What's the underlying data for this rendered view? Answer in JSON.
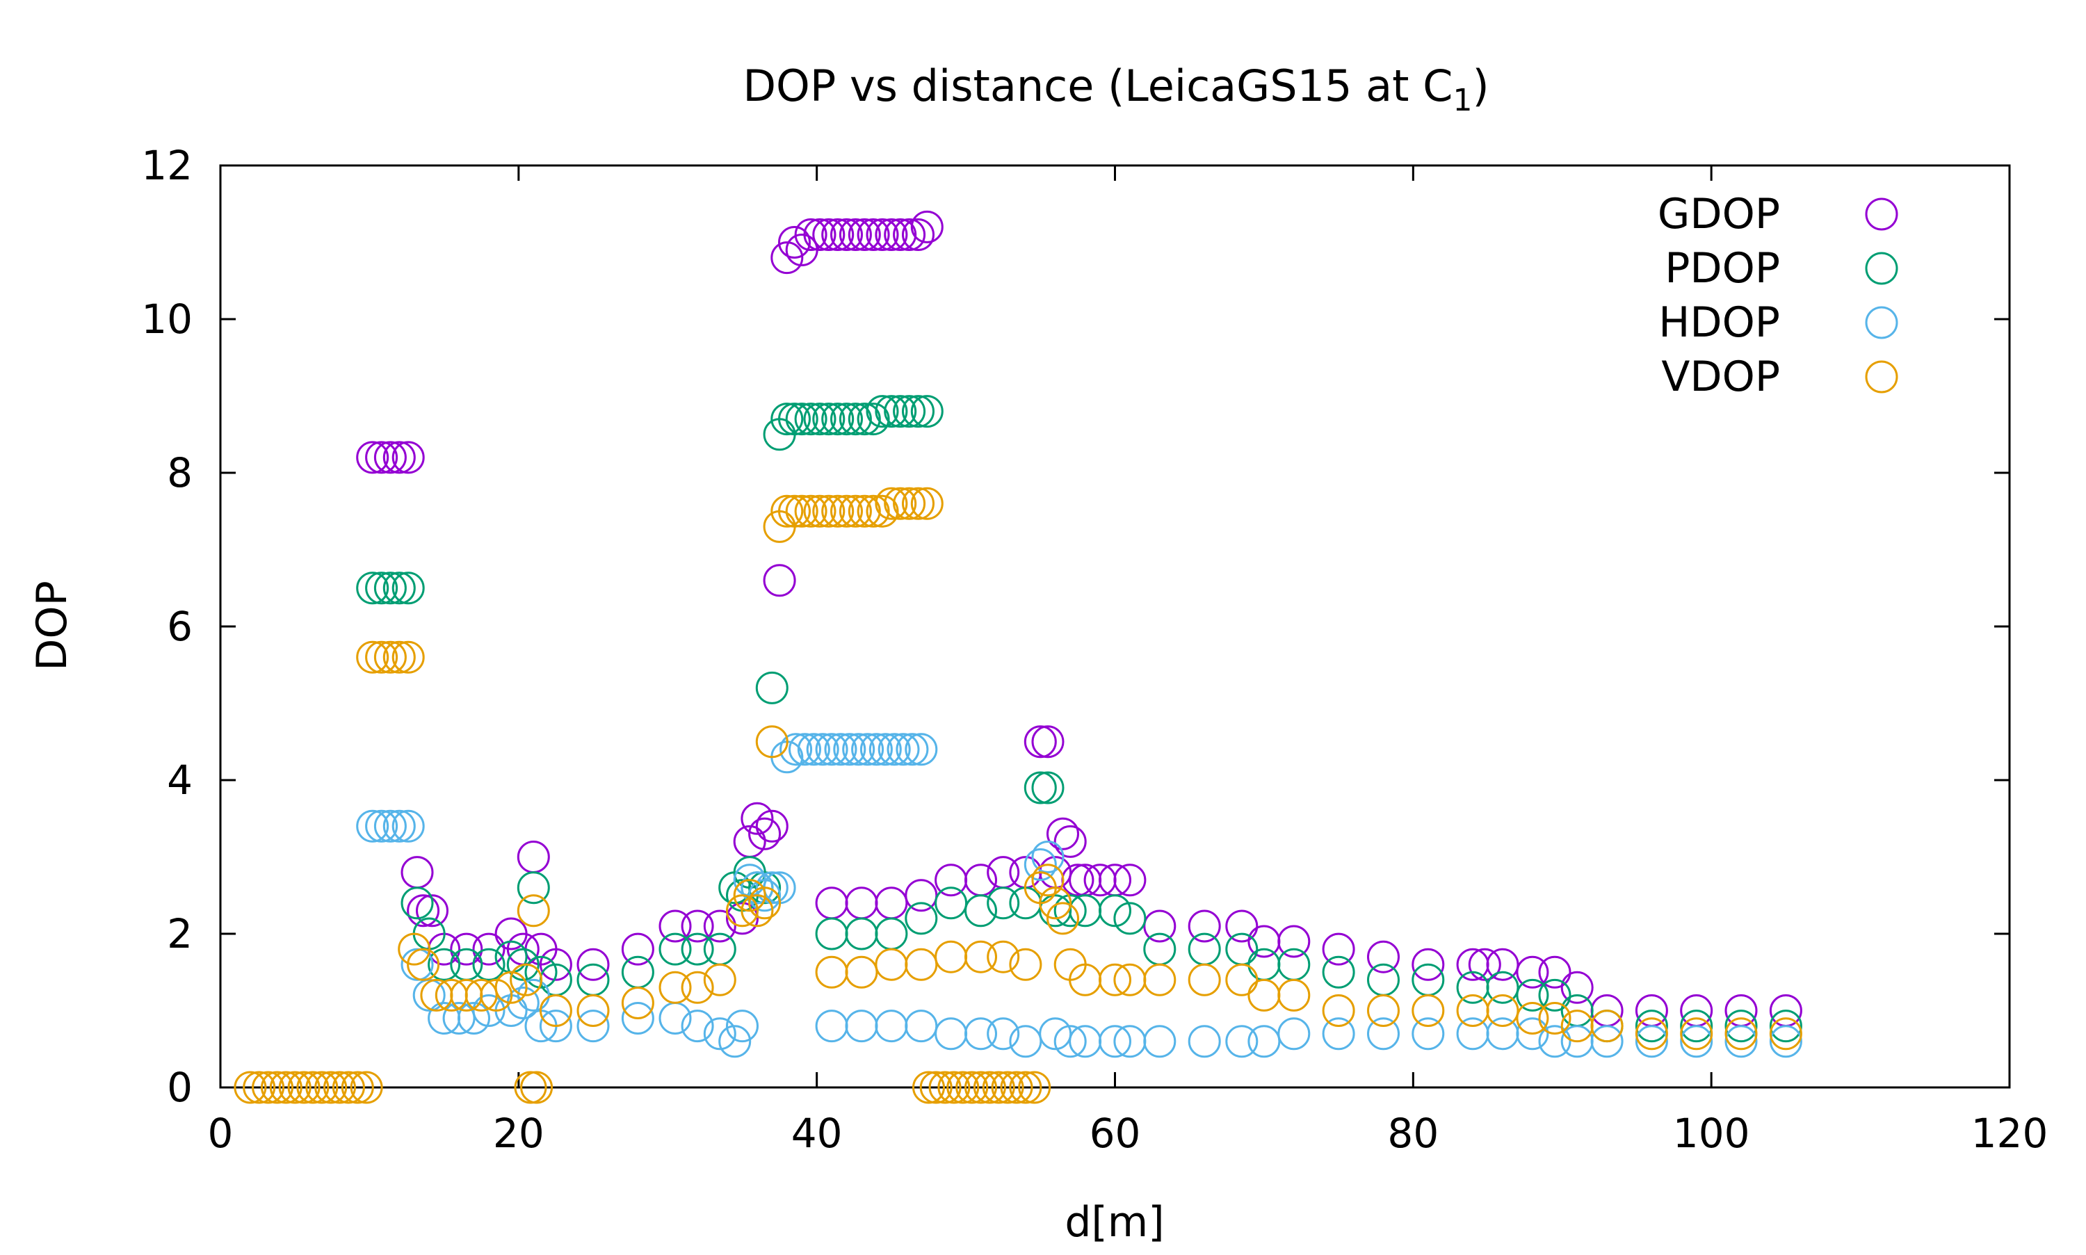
{
  "chart_data": {
    "type": "scatter",
    "title": "DOP vs distance (LeicaGS15 at C",
    "title_subscript": "1",
    "title_suffix": ")",
    "xlabel": "d[m]",
    "ylabel": "DOP",
    "xlim": [
      0,
      120
    ],
    "ylim": [
      0,
      12
    ],
    "xticks": [
      "0",
      "20",
      "40",
      "60",
      "80",
      "100",
      "120"
    ],
    "yticks": [
      "0",
      "2",
      "4",
      "6",
      "8",
      "10",
      "12"
    ],
    "grid": false,
    "legend_position": "top-right",
    "marker": "open-circle",
    "series": [
      {
        "name": "GDOP",
        "color": "#9400d3",
        "x": [
          10.2,
          10.8,
          11.4,
          12.0,
          12.6,
          13.2,
          13.6,
          14.2,
          15.0,
          16.5,
          18.0,
          19.5,
          20.3,
          21.0,
          21.5,
          22.5,
          25.0,
          28.0,
          30.5,
          32.0,
          33.5,
          35.0,
          35.5,
          36.0,
          36.5,
          37.0,
          37.5,
          38.0,
          38.5,
          39.0,
          39.6,
          40.2,
          40.8,
          41.4,
          42.0,
          42.6,
          43.2,
          43.8,
          44.4,
          45.0,
          45.6,
          46.2,
          46.8,
          47.4,
          41.0,
          43.0,
          45.0,
          47.0,
          49.0,
          51.0,
          52.5,
          54.0,
          55.0,
          55.5,
          56.0,
          56.5,
          57.0,
          57.5,
          58.0,
          59.0,
          60.0,
          61.0,
          63.0,
          66.0,
          68.5,
          70.0,
          72.0,
          75.0,
          78.0,
          81.0,
          84.0,
          84.8,
          86.0,
          88.0,
          89.5,
          91.0,
          93.0,
          96.0,
          99.0,
          102.0,
          105.0
        ],
        "y": [
          8.2,
          8.2,
          8.2,
          8.2,
          8.2,
          2.8,
          2.3,
          2.3,
          1.8,
          1.8,
          1.8,
          2.0,
          1.8,
          3.0,
          1.8,
          1.6,
          1.6,
          1.8,
          2.1,
          2.1,
          2.1,
          2.2,
          3.2,
          3.5,
          3.3,
          3.4,
          6.6,
          10.8,
          11.0,
          10.9,
          11.1,
          11.1,
          11.1,
          11.1,
          11.1,
          11.1,
          11.1,
          11.1,
          11.1,
          11.1,
          11.1,
          11.1,
          11.1,
          11.2,
          2.4,
          2.4,
          2.4,
          2.5,
          2.7,
          2.7,
          2.8,
          2.8,
          4.5,
          4.5,
          2.8,
          3.3,
          3.2,
          2.7,
          2.7,
          2.7,
          2.7,
          2.7,
          2.1,
          2.1,
          2.1,
          1.9,
          1.9,
          1.8,
          1.7,
          1.6,
          1.6,
          1.6,
          1.6,
          1.5,
          1.5,
          1.3,
          1.0,
          1.0,
          1.0,
          1.0,
          1.0
        ]
      },
      {
        "name": "PDOP",
        "color": "#009e73",
        "x": [
          10.2,
          10.8,
          11.4,
          12.0,
          12.6,
          13.2,
          14.0,
          15.0,
          16.5,
          18.0,
          19.5,
          20.3,
          21.0,
          21.5,
          22.5,
          25.0,
          28.0,
          30.5,
          32.0,
          33.5,
          34.5,
          35.0,
          35.5,
          36.0,
          36.5,
          37.0,
          37.5,
          38.0,
          38.5,
          39.0,
          39.6,
          40.2,
          40.8,
          41.4,
          42.0,
          42.6,
          43.2,
          43.8,
          44.4,
          45.0,
          45.6,
          46.2,
          46.8,
          47.4,
          41.0,
          43.0,
          45.0,
          47.0,
          49.0,
          51.0,
          52.5,
          54.0,
          55.0,
          55.5,
          56.0,
          57.0,
          58.0,
          60.0,
          61.0,
          63.0,
          66.0,
          68.5,
          70.0,
          72.0,
          75.0,
          78.0,
          81.0,
          84.0,
          86.0,
          88.0,
          89.5,
          91.0,
          93.0,
          96.0,
          99.0,
          102.0,
          105.0
        ],
        "y": [
          6.5,
          6.5,
          6.5,
          6.5,
          6.5,
          2.4,
          2.0,
          1.6,
          1.6,
          1.6,
          1.7,
          1.6,
          2.6,
          1.5,
          1.4,
          1.4,
          1.5,
          1.8,
          1.8,
          1.8,
          2.6,
          2.5,
          2.8,
          2.6,
          2.6,
          5.2,
          8.5,
          8.7,
          8.7,
          8.7,
          8.7,
          8.7,
          8.7,
          8.7,
          8.7,
          8.7,
          8.7,
          8.7,
          8.8,
          8.8,
          8.8,
          8.8,
          8.8,
          8.8,
          2.0,
          2.0,
          2.0,
          2.2,
          2.4,
          2.3,
          2.4,
          2.4,
          3.9,
          3.9,
          2.3,
          2.3,
          2.3,
          2.3,
          2.2,
          1.8,
          1.8,
          1.8,
          1.6,
          1.6,
          1.5,
          1.4,
          1.4,
          1.3,
          1.3,
          1.2,
          1.2,
          1.0,
          0.8,
          0.8,
          0.8,
          0.8,
          0.8
        ]
      },
      {
        "name": "HDOP",
        "color": "#56b4e9",
        "x": [
          10.2,
          10.8,
          11.4,
          12.0,
          12.6,
          13.2,
          14.0,
          15.0,
          16.0,
          17.0,
          18.0,
          19.5,
          20.3,
          21.0,
          21.5,
          22.5,
          25.0,
          28.0,
          30.5,
          32.0,
          33.5,
          34.5,
          35.0,
          35.5,
          36.0,
          36.5,
          37.0,
          37.5,
          38.0,
          38.6,
          39.2,
          39.8,
          40.4,
          41.0,
          41.6,
          42.2,
          42.8,
          43.4,
          44.0,
          44.6,
          45.2,
          45.8,
          46.4,
          47.0,
          41.0,
          43.0,
          45.0,
          47.0,
          49.0,
          51.0,
          52.5,
          54.0,
          55.0,
          55.5,
          56.0,
          57.0,
          58.0,
          60.0,
          61.0,
          63.0,
          66.0,
          68.5,
          70.0,
          72.0,
          75.0,
          78.0,
          81.0,
          84.0,
          86.0,
          88.0,
          89.5,
          91.0,
          93.0,
          96.0,
          99.0,
          102.0,
          105.0
        ],
        "y": [
          3.4,
          3.4,
          3.4,
          3.4,
          3.4,
          1.6,
          1.2,
          0.9,
          0.9,
          0.9,
          1.0,
          1.0,
          1.1,
          1.2,
          0.8,
          0.8,
          0.8,
          0.9,
          0.9,
          0.8,
          0.7,
          0.6,
          0.8,
          2.7,
          2.6,
          2.5,
          2.6,
          2.6,
          4.3,
          4.4,
          4.4,
          4.4,
          4.4,
          4.4,
          4.4,
          4.4,
          4.4,
          4.4,
          4.4,
          4.4,
          4.4,
          4.4,
          4.4,
          4.4,
          0.8,
          0.8,
          0.8,
          0.8,
          0.7,
          0.7,
          0.7,
          0.6,
          2.9,
          3.0,
          0.7,
          0.6,
          0.6,
          0.6,
          0.6,
          0.6,
          0.6,
          0.6,
          0.6,
          0.7,
          0.7,
          0.7,
          0.7,
          0.7,
          0.7,
          0.7,
          0.6,
          0.6,
          0.6,
          0.6,
          0.6,
          0.6,
          0.6
        ]
      },
      {
        "name": "VDOP",
        "color": "#e69f00",
        "x": [
          2.0,
          2.6,
          3.2,
          3.8,
          4.4,
          5.0,
          5.6,
          6.2,
          6.8,
          7.4,
          8.0,
          8.6,
          9.2,
          9.8,
          10.2,
          10.8,
          11.4,
          12.0,
          12.6,
          13.0,
          13.6,
          14.5,
          15.5,
          16.5,
          17.5,
          18.5,
          19.5,
          20.5,
          21.0,
          20.8,
          21.2,
          22.5,
          25.0,
          28.0,
          30.5,
          32.0,
          33.5,
          35.0,
          35.5,
          36.0,
          36.5,
          37.0,
          37.5,
          38.0,
          38.5,
          39.0,
          39.6,
          40.2,
          40.8,
          41.4,
          42.0,
          42.6,
          43.2,
          43.8,
          44.4,
          45.0,
          45.6,
          46.2,
          46.8,
          47.4,
          47.5,
          48.0,
          48.6,
          49.2,
          49.8,
          50.4,
          51.0,
          51.6,
          52.2,
          52.8,
          53.4,
          54.0,
          54.6,
          41.0,
          43.0,
          45.0,
          47.0,
          49.0,
          51.0,
          52.5,
          54.0,
          55.0,
          55.5,
          56.0,
          56.5,
          57.0,
          58.0,
          60.0,
          61.0,
          63.0,
          66.0,
          68.5,
          70.0,
          72.0,
          75.0,
          78.0,
          81.0,
          84.0,
          86.0,
          88.0,
          89.5,
          91.0,
          93.0,
          96.0,
          99.0,
          102.0,
          105.0
        ],
        "y": [
          0,
          0,
          0,
          0,
          0,
          0,
          0,
          0,
          0,
          0,
          0,
          0,
          0,
          0,
          5.6,
          5.6,
          5.6,
          5.6,
          5.6,
          1.8,
          1.6,
          1.2,
          1.2,
          1.2,
          1.2,
          1.2,
          1.3,
          1.4,
          2.3,
          0,
          0,
          1.0,
          1.0,
          1.1,
          1.3,
          1.3,
          1.4,
          2.3,
          2.5,
          2.3,
          2.4,
          4.5,
          7.3,
          7.5,
          7.5,
          7.5,
          7.5,
          7.5,
          7.5,
          7.5,
          7.5,
          7.5,
          7.5,
          7.5,
          7.5,
          7.6,
          7.6,
          7.6,
          7.6,
          7.6,
          0,
          0,
          0,
          0,
          0,
          0,
          0,
          0,
          0,
          0,
          0,
          0,
          0,
          1.5,
          1.5,
          1.6,
          1.6,
          1.7,
          1.7,
          1.7,
          1.6,
          2.6,
          2.7,
          2.4,
          2.2,
          1.6,
          1.4,
          1.4,
          1.4,
          1.4,
          1.4,
          1.4,
          1.2,
          1.2,
          1.0,
          1.0,
          1.0,
          1.0,
          1.0,
          0.9,
          0.9,
          0.8,
          0.8,
          0.7,
          0.7,
          0.7,
          0.7
        ]
      }
    ]
  }
}
